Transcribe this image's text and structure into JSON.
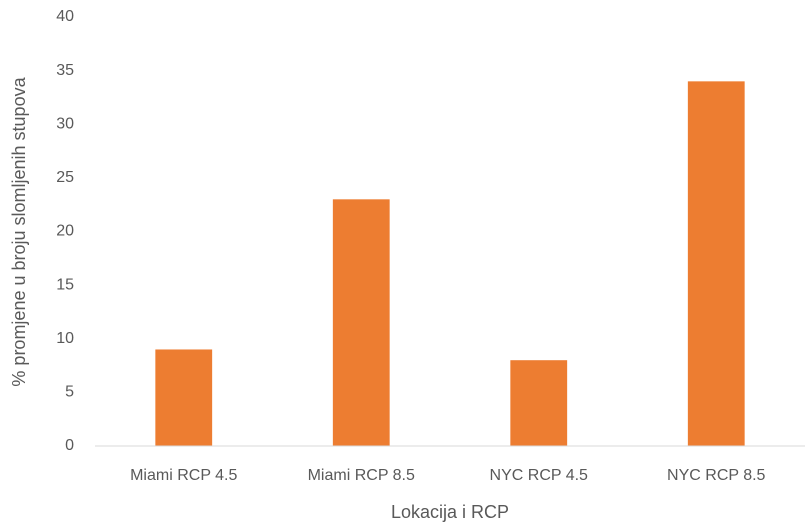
{
  "chart_data": {
    "type": "bar",
    "x_label": "Lokacija i RCP",
    "y_label": "% promjene u broju slomljenih stupova",
    "categories": [
      "Miami RCP 4.5",
      "Miami RCP 8.5",
      "NYC RCP 4.5",
      "NYC RCP 8.5"
    ],
    "values": [
      9,
      23,
      8,
      34
    ],
    "color": "#ed7d31",
    "ylim": [
      0,
      40
    ],
    "yticks": [
      0,
      5,
      10,
      15,
      20,
      25,
      30,
      35,
      40
    ],
    "grid": false
  }
}
